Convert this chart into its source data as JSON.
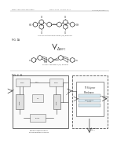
{
  "background_color": "#ffffff",
  "header_text": "Patent Application Publication",
  "header_text2": "May 3, 2012   Sheet 2 of 11",
  "header_text3": "US 2012/0104306 A1",
  "fig1_label": "FIG. 1",
  "fig1_sub": "A",
  "fig2_label": "FIG. 2",
  "fig2_sub": "B",
  "line_color": "#444444",
  "bg_color": "#f8f8f8",
  "box_color": "#dddddd"
}
